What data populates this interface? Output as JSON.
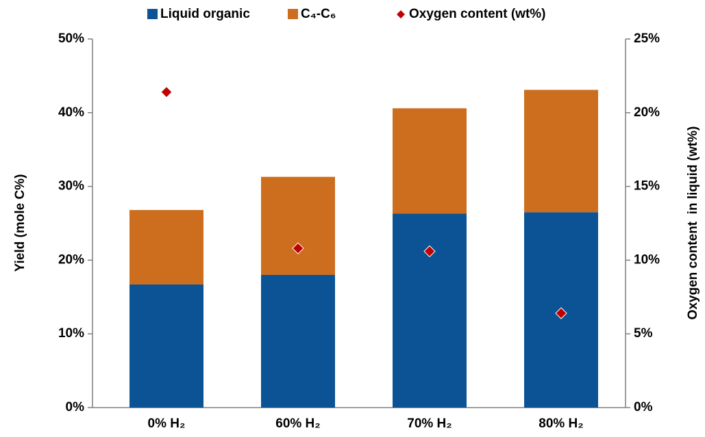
{
  "chart_data": {
    "type": "bar",
    "stacked": true,
    "categories": [
      "0% H₂",
      "60% H₂",
      "70% H₂",
      "80% H₂"
    ],
    "series": [
      {
        "name": "Liquid organic",
        "color": "#0b5394",
        "values": [
          16.7,
          18.0,
          26.3,
          26.5
        ]
      },
      {
        "name": "C₄-C₆",
        "color": "#cc6e1e",
        "values": [
          10.1,
          13.3,
          14.3,
          16.6
        ]
      },
      {
        "name": "Oxygen content (wt%)",
        "color": "#c00000",
        "type": "scatter",
        "axis": "y2",
        "values": [
          21.4,
          10.8,
          10.6,
          6.4
        ]
      }
    ],
    "ylabel": "Yield (mole C%)",
    "y2label": "Oxygen content  in liquid (wt%)",
    "ylim": [
      0,
      50
    ],
    "yticks": [
      {
        "value": 0,
        "label": "0%"
      },
      {
        "value": 10,
        "label": "10%"
      },
      {
        "value": 20,
        "label": "20%"
      },
      {
        "value": 30,
        "label": "30%"
      },
      {
        "value": 40,
        "label": "40%"
      },
      {
        "value": 50,
        "label": "50%"
      }
    ],
    "y2lim": [
      0,
      25
    ],
    "y2ticks": [
      {
        "value": 0,
        "label": "0%"
      },
      {
        "value": 5,
        "label": "5%"
      },
      {
        "value": 10,
        "label": "10%"
      },
      {
        "value": 15,
        "label": "15%"
      },
      {
        "value": 20,
        "label": "20%"
      },
      {
        "value": 25,
        "label": "25%"
      }
    ],
    "legend": "top",
    "grid": false
  }
}
